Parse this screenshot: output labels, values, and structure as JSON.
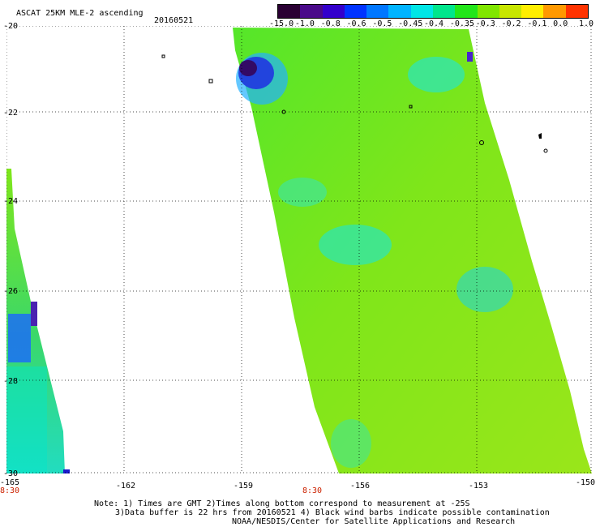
{
  "header": {
    "title": "ASCAT 25KM MLE-2 ascending",
    "date": "20160521"
  },
  "colorbar": {
    "labels": [
      "-15.0",
      "-1.0",
      "-0.8",
      "-0.6",
      "-0.5",
      "-0.45",
      "-0.4",
      "-0.35",
      "-0.3",
      "-0.2",
      "-0.1",
      "0.0",
      "1.0"
    ],
    "colors": [
      "#2a0033",
      "#4a0a8a",
      "#3300cc",
      "#0033ff",
      "#0077ff",
      "#00b4ff",
      "#00e6e6",
      "#00e68c",
      "#22e61a",
      "#80e600",
      "#c8e600",
      "#ffee00",
      "#ff9900",
      "#ff3300"
    ]
  },
  "axes": {
    "x_ticks": [
      "-165",
      "-162",
      "-159",
      "-156",
      "-153",
      "-150"
    ],
    "y_ticks": [
      "-20",
      "-22",
      "-24",
      "-26",
      "-28",
      "-30"
    ],
    "time_labels": [
      "8:30",
      "8:30"
    ]
  },
  "notes": [
    "Note: 1) Times are GMT 2)Times along bottom correspond to measurement at -25S",
    "3)Data buffer is 22 hrs from 20160521 4) Black wind barbs indicate possible contamination",
    "NOAA/NESDIS/Center for Satellite Applications and Research"
  ]
}
